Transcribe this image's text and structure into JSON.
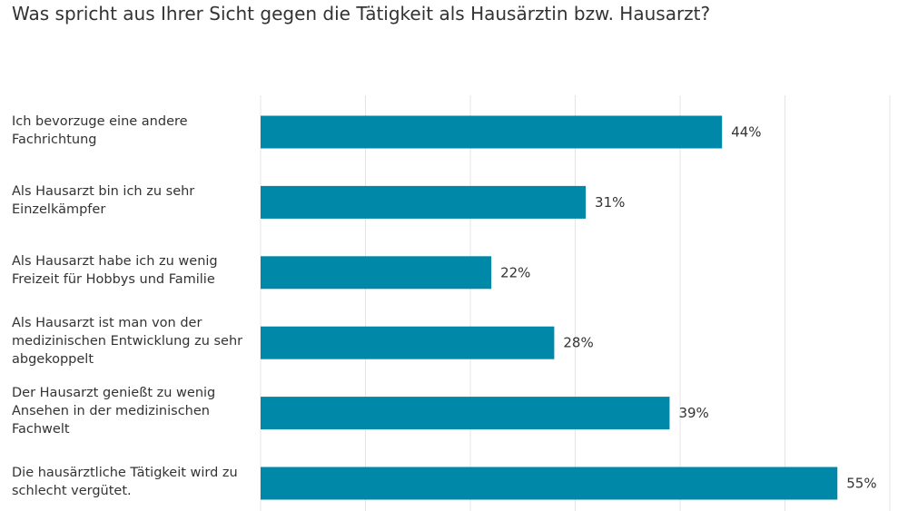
{
  "chart_data": {
    "type": "bar",
    "orientation": "horizontal",
    "title": "Was spricht aus Ihrer Sicht gegen die Tätigkeit als Hausärztin bzw. Hausarzt?",
    "categories": [
      "Ich bevorzuge eine andere Fachrichtung",
      "Als Hausarzt bin ich zu sehr Einzelkämpfer",
      "Als Hausarzt habe ich zu wenig Freizeit für Hobbys und Familie",
      "Als Hausarzt ist man von der medizinischen Entwicklung zu sehr abgekoppelt",
      "Der Hausarzt genießt zu wenig Ansehen in der medizinischen Fachwelt",
      "Die hausärztliche Tätigkeit wird zu schlecht vergütet."
    ],
    "values": [
      44,
      31,
      22,
      28,
      39,
      55
    ],
    "data_labels": [
      "44%",
      "31%",
      "22%",
      "28%",
      "39%",
      "55%"
    ],
    "xlabel": "",
    "ylabel": "",
    "xlim": [
      0,
      60
    ],
    "gridlines": [
      0,
      10,
      20,
      30,
      40,
      50,
      60
    ],
    "grid": true,
    "bar_color": "#0088a8",
    "grid_color": "#e4e4e4"
  }
}
